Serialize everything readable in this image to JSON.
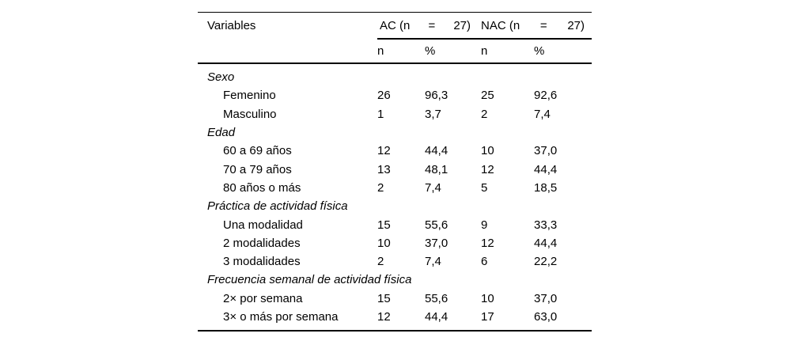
{
  "colors": {
    "background": "#ffffff",
    "text": "#000000",
    "rule": "#000000"
  },
  "table": {
    "header": {
      "variables_label": "Variables",
      "group_ac": {
        "name": "AC (n",
        "eq": "=",
        "value": "27)"
      },
      "group_nac": {
        "name": "NAC (n",
        "eq": "=",
        "value": "27)"
      },
      "subheaders": [
        "n",
        "%",
        "n",
        "%"
      ]
    },
    "sections": [
      {
        "title": "Sexo",
        "rows": [
          {
            "label": "Femenino",
            "values": [
              "26",
              "96,3",
              "25",
              "92,6"
            ]
          },
          {
            "label": "Masculino",
            "values": [
              "1",
              "3,7",
              "2",
              "7,4"
            ]
          }
        ]
      },
      {
        "title": "Edad",
        "rows": [
          {
            "label": "60 a 69 años",
            "values": [
              "12",
              "44,4",
              "10",
              "37,0"
            ]
          },
          {
            "label": "70 a 79 años",
            "values": [
              "13",
              "48,1",
              "12",
              "44,4"
            ]
          },
          {
            "label": "80 años o más",
            "values": [
              "2",
              "7,4",
              "5",
              "18,5"
            ]
          }
        ]
      },
      {
        "title": "Práctica de actividad física",
        "rows": [
          {
            "label": "Una modalidad",
            "values": [
              "15",
              "55,6",
              "9",
              "33,3"
            ]
          },
          {
            "label": "2 modalidades",
            "values": [
              "10",
              "37,0",
              "12",
              "44,4"
            ]
          },
          {
            "label": "3 modalidades",
            "values": [
              "2",
              "7,4",
              "6",
              "22,2"
            ]
          }
        ]
      },
      {
        "title": "Frecuencia semanal de actividad física",
        "rows": [
          {
            "label": "2× por semana",
            "values": [
              "15",
              "55,6",
              "10",
              "37,0"
            ]
          },
          {
            "label": "3× o más por semana",
            "values": [
              "12",
              "44,4",
              "17",
              "63,0"
            ]
          }
        ]
      }
    ]
  }
}
